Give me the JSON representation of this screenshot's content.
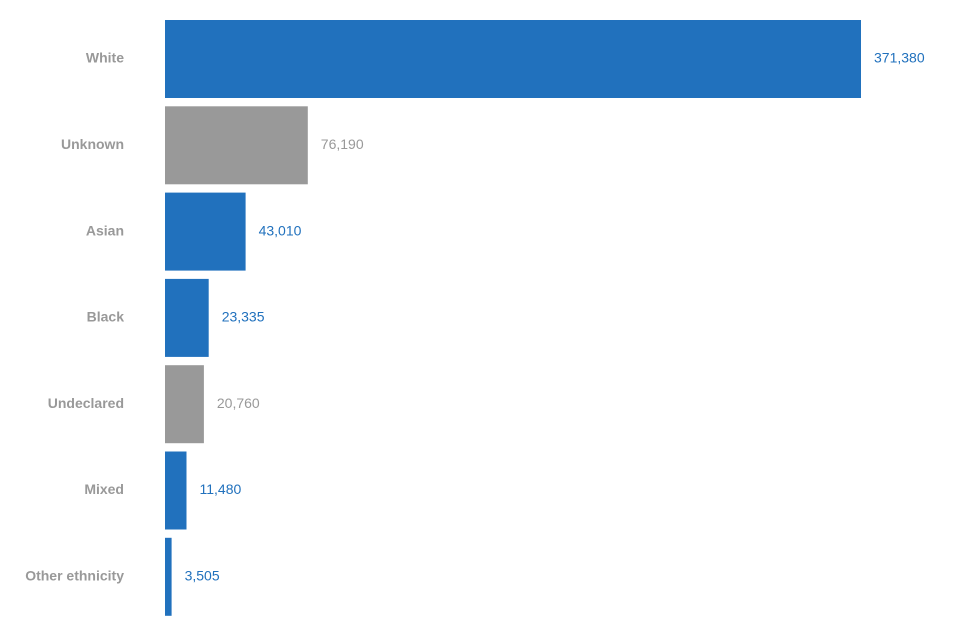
{
  "chart_data": {
    "type": "bar",
    "orientation": "horizontal",
    "categories": [
      "White",
      "Unknown",
      "Asian",
      "Black",
      "Undeclared",
      "Mixed",
      "Other ethnicity"
    ],
    "values": [
      371380,
      76190,
      43010,
      23335,
      20760,
      11480,
      3505
    ],
    "value_labels": [
      "371,380",
      "76,190",
      "43,010",
      "23,335",
      "20,760",
      "11,480",
      "3,505"
    ],
    "highlight": [
      true,
      false,
      true,
      true,
      false,
      true,
      true
    ],
    "title": "",
    "xlabel": "",
    "ylabel": "",
    "xlim": [
      0,
      371380
    ],
    "grid": false,
    "legend": "none",
    "colors": {
      "primary": "#2171bd",
      "secondary": "#999999",
      "category_label": "#999999"
    }
  }
}
